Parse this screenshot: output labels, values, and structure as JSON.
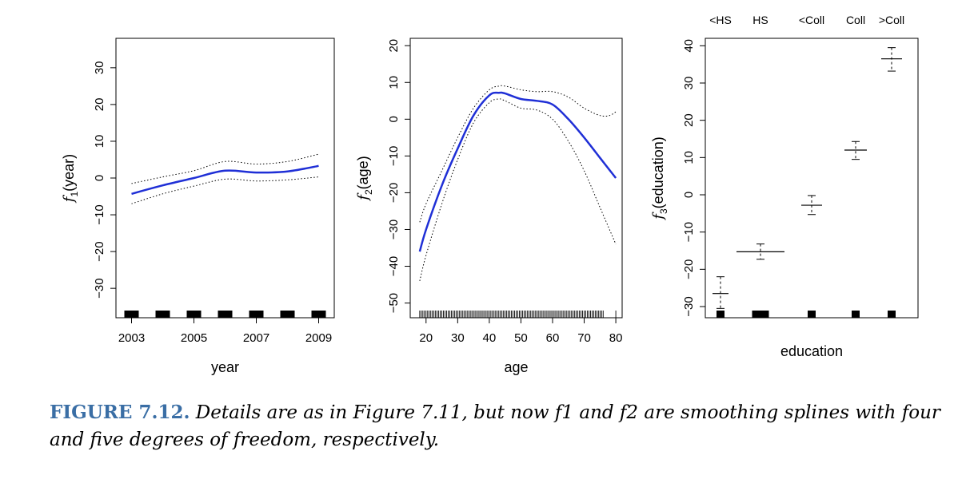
{
  "chart_data": [
    {
      "type": "line",
      "xlabel": "year",
      "ylabel": "f1(year)",
      "ylabel_main": "f",
      "ylabel_sub": "1",
      "ylabel_arg": "(year)",
      "xlim": [
        2002.5,
        2009.5
      ],
      "ylim": [
        -38,
        38
      ],
      "xticks": [
        2003,
        2005,
        2007,
        2009
      ],
      "xtick_labels": [
        "2003",
        "2005",
        "2007",
        "2009"
      ],
      "yticks": [
        -30,
        -20,
        -10,
        0,
        10,
        20,
        30
      ],
      "ytick_labels": [
        "−30",
        "−20",
        "−10",
        "0",
        "10",
        "20",
        "30"
      ],
      "series": [
        {
          "role": "fit",
          "color": "#1f2fd6",
          "x": [
            2003,
            2004,
            2005,
            2006,
            2007,
            2008,
            2009
          ],
          "y": [
            -4.3,
            -2.0,
            0.0,
            2.0,
            1.5,
            1.8,
            3.3
          ]
        },
        {
          "role": "upper",
          "color": "#000000",
          "x": [
            2003,
            2004,
            2005,
            2006,
            2007,
            2008,
            2009
          ],
          "y": [
            -1.5,
            0.3,
            2.0,
            4.5,
            3.8,
            4.5,
            6.5
          ]
        },
        {
          "role": "lower",
          "color": "#000000",
          "x": [
            2003,
            2004,
            2005,
            2006,
            2007,
            2008,
            2009
          ],
          "y": [
            -7.0,
            -4.3,
            -2.2,
            -0.3,
            -0.8,
            -0.5,
            0.3
          ]
        }
      ],
      "rug_x": [
        2003,
        2004,
        2005,
        2006,
        2007,
        2008,
        2009
      ],
      "grid": false
    },
    {
      "type": "line",
      "xlabel": "age",
      "ylabel": "f2(age)",
      "ylabel_main": "f",
      "ylabel_sub": "2",
      "ylabel_arg": "(age)",
      "xlim": [
        15,
        82
      ],
      "ylim": [
        -54,
        22
      ],
      "xticks": [
        20,
        30,
        40,
        50,
        60,
        70,
        80
      ],
      "xtick_labels": [
        "20",
        "30",
        "40",
        "50",
        "60",
        "70",
        "80"
      ],
      "yticks": [
        -50,
        -40,
        -30,
        -20,
        -10,
        0,
        10,
        20
      ],
      "ytick_labels": [
        "−50",
        "−40",
        "−30",
        "−20",
        "−10",
        "0",
        "10",
        "20"
      ],
      "series": [
        {
          "role": "fit",
          "color": "#1f2fd6",
          "x": [
            18,
            20,
            25,
            30,
            35,
            40,
            43,
            45,
            50,
            55,
            60,
            65,
            70,
            75,
            80
          ],
          "y": [
            -36,
            -30,
            -18,
            -8,
            1,
            6.5,
            7.2,
            7,
            5.5,
            5,
            4,
            0,
            -5,
            -10.5,
            -16
          ]
        },
        {
          "role": "upper",
          "color": "#000000",
          "x": [
            18,
            20,
            25,
            30,
            35,
            40,
            43,
            45,
            50,
            55,
            60,
            65,
            70,
            75,
            78,
            80
          ],
          "y": [
            -28,
            -23,
            -14,
            -5,
            3,
            8,
            9,
            9,
            8,
            7.5,
            7.5,
            6,
            3,
            1,
            1,
            2
          ]
        },
        {
          "role": "lower",
          "color": "#000000",
          "x": [
            18,
            20,
            25,
            30,
            35,
            40,
            43,
            45,
            50,
            55,
            60,
            65,
            70,
            75,
            80
          ],
          "y": [
            -44,
            -37,
            -23,
            -11,
            -1,
            4.5,
            5.5,
            5,
            3,
            2.5,
            0,
            -6,
            -14,
            -24,
            -34
          ]
        }
      ],
      "rug_range": [
        18,
        80
      ],
      "grid": false
    },
    {
      "type": "scatter",
      "xlabel": "education",
      "ylabel": "f3(education)",
      "ylabel_main": "f",
      "ylabel_sub": "3",
      "ylabel_arg": "(education)",
      "categories": [
        "<HS",
        "HS",
        "<Coll",
        "Coll",
        ">Coll"
      ],
      "ylim": [
        -33,
        42
      ],
      "yticks": [
        -30,
        -20,
        -10,
        0,
        10,
        20,
        30,
        40
      ],
      "ytick_labels": [
        "−30",
        "−20",
        "−10",
        "0",
        "10",
        "20",
        "30",
        "40"
      ],
      "values": [
        -26.5,
        -15.3,
        -2.8,
        12,
        36.5
      ],
      "upper": [
        -22,
        -13.2,
        -0.2,
        14.3,
        39.5
      ],
      "lower": [
        -30.5,
        -17.3,
        -5.3,
        9.5,
        33.2
      ],
      "grid": false
    }
  ],
  "caption": {
    "label": "FIGURE 7.12.",
    "text": " Details are as in Figure 7.11, but now f1 and f2 are smoothing splines with four and five degrees of freedom, respectively."
  }
}
